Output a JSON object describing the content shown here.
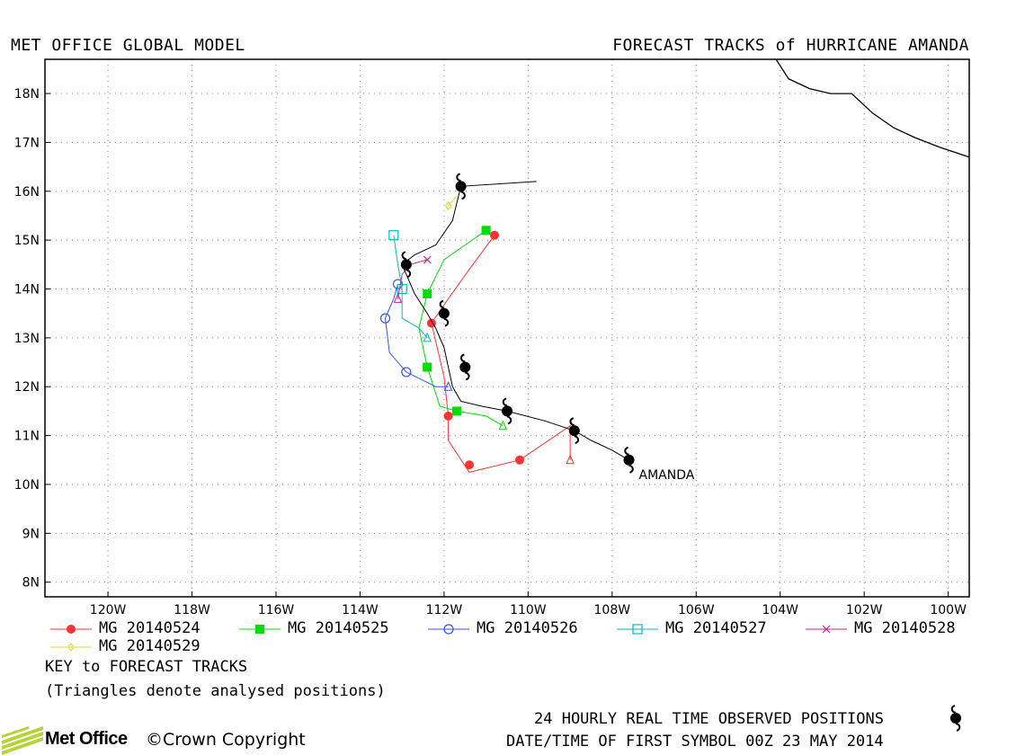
{
  "header": {
    "left": "MET OFFICE GLOBAL MODEL",
    "right": "FORECAST TRACKS of HURRICANE AMANDA"
  },
  "chart_data": {
    "type": "map",
    "x_range": [
      -121.5,
      -99.5
    ],
    "y_range": [
      7.7,
      18.7
    ],
    "grid": true,
    "x_ticks": [
      -120,
      -118,
      -116,
      -114,
      -112,
      -110,
      -108,
      -106,
      -104,
      -102,
      -100
    ],
    "x_tick_labels": [
      "120W",
      "118W",
      "116W",
      "114W",
      "112W",
      "110W",
      "108W",
      "106W",
      "104W",
      "102W",
      "100W"
    ],
    "y_ticks": [
      8,
      9,
      10,
      11,
      12,
      13,
      14,
      15,
      16,
      17,
      18
    ],
    "y_tick_labels": [
      "8N",
      "9N",
      "10N",
      "11N",
      "12N",
      "13N",
      "14N",
      "15N",
      "16N",
      "17N",
      "18N"
    ],
    "storm_label": "AMANDA",
    "coastline": [
      [
        -104.1,
        18.7
      ],
      [
        -103.8,
        18.3
      ],
      [
        -103.3,
        18.1
      ],
      [
        -102.8,
        18.0
      ],
      [
        -102.3,
        18.0
      ],
      [
        -101.8,
        17.6
      ],
      [
        -101.3,
        17.3
      ],
      [
        -100.8,
        17.1
      ],
      [
        -100.2,
        16.9
      ],
      [
        -99.5,
        16.7
      ]
    ],
    "observed": {
      "name": "24 HOURLY REAL TIME OBSERVED POSITIONS",
      "path": [
        [
          -107.6,
          10.5
        ],
        [
          -108.0,
          10.7
        ],
        [
          -108.5,
          10.9
        ],
        [
          -108.9,
          11.1
        ],
        [
          -109.6,
          11.3
        ],
        [
          -110.5,
          11.5
        ],
        [
          -111.1,
          11.6
        ],
        [
          -111.6,
          11.7
        ],
        [
          -111.8,
          12.0
        ],
        [
          -111.9,
          12.4
        ],
        [
          -112.0,
          12.8
        ],
        [
          -112.2,
          13.2
        ],
        [
          -112.4,
          13.5
        ],
        [
          -112.7,
          13.9
        ],
        [
          -113.0,
          14.5
        ],
        [
          -112.7,
          14.7
        ],
        [
          -112.2,
          14.9
        ],
        [
          -111.8,
          15.4
        ],
        [
          -111.6,
          16.1
        ],
        [
          -109.8,
          16.2
        ]
      ],
      "symbols": [
        [
          -107.6,
          10.5
        ],
        [
          -108.9,
          11.1
        ],
        [
          -110.5,
          11.5
        ],
        [
          -111.5,
          12.4
        ],
        [
          -112.0,
          13.5
        ],
        [
          -112.9,
          14.5
        ],
        [
          -111.6,
          16.1
        ]
      ]
    },
    "series": [
      {
        "name": "MG 20140524",
        "color": "#ff3333",
        "marker": "filled-circle",
        "points": [
          [
            -109.0,
            10.5
          ],
          [
            -109.0,
            11.2
          ],
          [
            -110.2,
            10.5
          ],
          [
            -111.4,
            10.4
          ],
          [
            -111.9,
            11.4
          ],
          [
            -112.3,
            13.3
          ],
          [
            -110.8,
            15.1
          ]
        ],
        "markers": [
          [
            -110.2,
            10.5
          ],
          [
            -111.4,
            10.4
          ],
          [
            -111.9,
            11.4
          ],
          [
            -112.3,
            13.3
          ],
          [
            -110.8,
            15.1
          ]
        ],
        "analysed": [
          -109.0,
          10.5
        ],
        "path_prefix": [
          [
            -109.0,
            11.2
          ],
          [
            -110.2,
            10.5
          ],
          [
            -111.4,
            10.25
          ],
          [
            -111.9,
            10.9
          ],
          [
            -111.9,
            11.4
          ],
          [
            -112.0,
            12.2
          ],
          [
            -112.3,
            13.3
          ],
          [
            -111.9,
            13.8
          ],
          [
            -111.4,
            14.4
          ],
          [
            -110.8,
            15.1
          ]
        ]
      },
      {
        "name": "MG 20140525",
        "color": "#00dd00",
        "marker": "filled-square",
        "points": [
          [
            -110.6,
            11.2
          ],
          [
            -111.0,
            11.4
          ],
          [
            -111.7,
            11.5
          ],
          [
            -112.1,
            11.6
          ],
          [
            -112.4,
            12.4
          ],
          [
            -112.6,
            13.2
          ],
          [
            -112.4,
            13.9
          ],
          [
            -112.0,
            14.6
          ],
          [
            -111.0,
            15.2
          ]
        ],
        "markers": [
          [
            -111.7,
            11.5
          ],
          [
            -112.4,
            12.4
          ],
          [
            -112.4,
            13.9
          ],
          [
            -111.0,
            15.2
          ]
        ],
        "analysed": [
          -110.6,
          11.2
        ]
      },
      {
        "name": "MG 20140526",
        "color": "#3355ee",
        "marker": "open-circle",
        "points": [
          [
            -111.9,
            12.0
          ],
          [
            -112.2,
            12.0
          ],
          [
            -112.9,
            12.3
          ],
          [
            -113.3,
            12.7
          ],
          [
            -113.4,
            13.4
          ],
          [
            -113.2,
            13.8
          ],
          [
            -113.1,
            14.1
          ]
        ],
        "markers": [
          [
            -112.9,
            12.3
          ],
          [
            -113.4,
            13.4
          ],
          [
            -113.1,
            14.1
          ]
        ],
        "analysed": [
          -111.9,
          12.0
        ]
      },
      {
        "name": "MG 20140527",
        "color": "#00bbbb",
        "marker": "open-square",
        "points": [
          [
            -112.4,
            13.0
          ],
          [
            -112.6,
            13.2
          ],
          [
            -113.0,
            13.4
          ],
          [
            -113.0,
            14.0
          ],
          [
            -113.1,
            14.5
          ],
          [
            -113.2,
            15.1
          ]
        ],
        "markers": [
          [
            -113.0,
            14.0
          ],
          [
            -113.2,
            15.1
          ]
        ],
        "analysed": [
          -112.4,
          13.0
        ]
      },
      {
        "name": "MG 20140528",
        "color": "#cc2288",
        "marker": "cross",
        "points": [
          [
            -113.1,
            13.8
          ],
          [
            -113.0,
            14.3
          ],
          [
            -112.8,
            14.5
          ],
          [
            -112.4,
            14.6
          ]
        ],
        "markers": [
          [
            -112.4,
            14.6
          ]
        ],
        "analysed": [
          -113.1,
          13.8
        ]
      },
      {
        "name": "MG 20140529",
        "color": "#dddd33",
        "marker": "open-diamond",
        "points": [
          [
            -111.9,
            15.7
          ],
          [
            -111.7,
            15.9
          ]
        ],
        "markers": [
          [
            -111.9,
            15.7
          ]
        ],
        "analysed": null
      }
    ]
  },
  "legend": {
    "items": [
      "MG 20140524",
      "MG 20140525",
      "MG 20140526",
      "MG 20140527",
      "MG 20140528",
      "MG 20140529"
    ]
  },
  "notes": {
    "key": "KEY to FORECAST TRACKS",
    "triangles": "(Triangles denote analysed positions)",
    "observed": "24 HOURLY REAL TIME OBSERVED POSITIONS",
    "first_symbol": "DATE/TIME OF FIRST SYMBOL 00Z 23 MAY 2014"
  },
  "footer": {
    "logo": "Met Office",
    "copyright": "Crown Copyright"
  },
  "colors": {
    "observed": "#000000",
    "logo_green": "#b5d334"
  }
}
